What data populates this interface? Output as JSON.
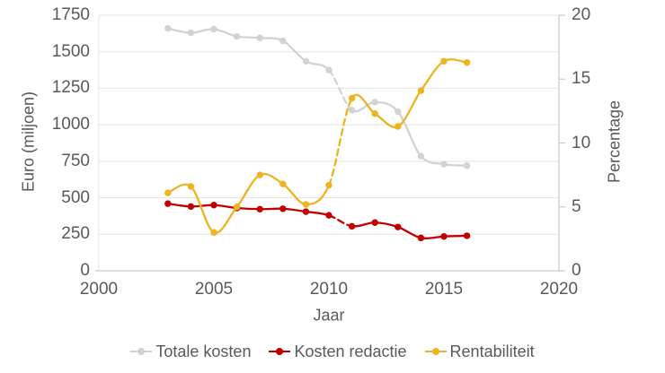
{
  "chart_data": {
    "type": "line",
    "title": "",
    "xlabel": "Jaar",
    "xlim": [
      2000,
      2020
    ],
    "x_ticks": [
      2000,
      2005,
      2010,
      2015,
      2020
    ],
    "x": [
      2003,
      2004,
      2005,
      2006,
      2007,
      2008,
      2009,
      2010,
      2011,
      2012,
      2013,
      2014,
      2015,
      2016
    ],
    "left_axis": {
      "label": "Euro (miljoen)",
      "lim": [
        0,
        1750
      ],
      "ticks": [
        0,
        250,
        500,
        750,
        1000,
        1250,
        1500,
        1750
      ]
    },
    "right_axis": {
      "label": "Percentage",
      "lim": [
        0,
        20
      ],
      "ticks": [
        0,
        5,
        10,
        15,
        20
      ]
    },
    "grid": "horizontal-only",
    "legend_position": "bottom",
    "line_style": "smoothed",
    "break_between_years": [
      2010,
      2011
    ],
    "series": [
      {
        "name": "Totale kosten",
        "axis": "left",
        "color": "#D2D2D2",
        "values": [
          1660,
          1630,
          1655,
          1605,
          1595,
          1575,
          1435,
          1375,
          1100,
          1155,
          1090,
          785,
          730,
          720
        ]
      },
      {
        "name": "Kosten redactie",
        "axis": "left",
        "color": "#C00000",
        "values": [
          460,
          440,
          450,
          430,
          422,
          425,
          405,
          380,
          305,
          330,
          300,
          225,
          235,
          240
        ]
      },
      {
        "name": "Rentabiliteit",
        "axis": "right",
        "color": "#EDB320",
        "values": [
          6.1,
          6.6,
          3.0,
          5.0,
          7.5,
          6.8,
          5.2,
          6.7,
          13.5,
          12.3,
          11.3,
          14.1,
          16.4,
          16.3
        ]
      }
    ]
  },
  "colors": {
    "text": "#595959",
    "gridline": "#E3E3E3",
    "axis_line": "#C9C9C9",
    "background": "#FFFFFF"
  }
}
